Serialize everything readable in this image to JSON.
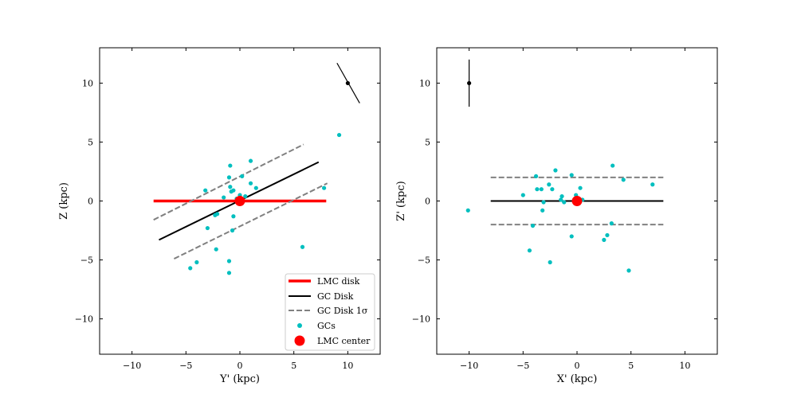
{
  "chart_data": [
    {
      "type": "scatter",
      "xlabel": "Y' (kpc)",
      "ylabel": "Z (kpc)",
      "xlim": [
        -13,
        13
      ],
      "ylim": [
        -13,
        13
      ],
      "xticks": [
        -10,
        -5,
        0,
        5,
        10
      ],
      "yticks": [
        -10,
        -5,
        0,
        5,
        10
      ],
      "xtick_labels": [
        "−10",
        "−5",
        "0",
        "5",
        "10"
      ],
      "ytick_labels": [
        "−10",
        "−5",
        "0",
        "5",
        "10"
      ],
      "legend_position": "lower-right",
      "lines": [
        {
          "name": "LMC disk",
          "style": "solid",
          "color": "#ff0000",
          "width": 3.5,
          "x": [
            -8,
            8
          ],
          "y": [
            0,
            0
          ]
        },
        {
          "name": "GC Disk",
          "style": "solid",
          "color": "#000000",
          "width": 2,
          "x": [
            -7.5,
            7.3
          ],
          "y": [
            -3.3,
            3.3
          ]
        },
        {
          "name": "GC Disk 1σ",
          "style": "dashed",
          "color": "#808080",
          "width": 2,
          "x": [
            -8,
            5.9
          ],
          "y": [
            -1.6,
            4.8
          ]
        },
        {
          "name": "GC Disk 1σ lower",
          "style": "dashed",
          "color": "#808080",
          "width": 2,
          "x": [
            -6.1,
            8.1
          ],
          "y": [
            -4.9,
            1.5
          ]
        }
      ],
      "gcs": {
        "name": "GCs",
        "color": "#00bfbf",
        "points": [
          [
            9.2,
            5.6
          ],
          [
            1.0,
            3.4
          ],
          [
            -0.9,
            3.0
          ],
          [
            -1.0,
            2.0
          ],
          [
            0.2,
            2.1
          ],
          [
            1.0,
            1.5
          ],
          [
            1.5,
            1.1
          ],
          [
            -0.9,
            1.2
          ],
          [
            -3.2,
            0.9
          ],
          [
            -0.6,
            0.9
          ],
          [
            -0.8,
            0.8
          ],
          [
            0.0,
            0.5
          ],
          [
            0.5,
            0.4
          ],
          [
            -0.3,
            0.2
          ],
          [
            -1.5,
            0.3
          ],
          [
            0.1,
            -0.1
          ],
          [
            -2.1,
            -1.1
          ],
          [
            -2.3,
            -1.2
          ],
          [
            -0.6,
            -1.3
          ],
          [
            -3.0,
            -2.3
          ],
          [
            -0.7,
            -2.5
          ],
          [
            -2.2,
            -4.1
          ],
          [
            5.8,
            -3.9
          ],
          [
            -1.0,
            -5.1
          ],
          [
            -4.0,
            -5.2
          ],
          [
            -4.6,
            -5.7
          ],
          [
            -1.0,
            -6.1
          ],
          [
            7.8,
            1.1
          ]
        ]
      },
      "center": {
        "name": "LMC center",
        "color": "#ff0000",
        "x": 0,
        "y": 0
      },
      "errorbar": {
        "x": 10,
        "y": 10,
        "color": "#000000",
        "x_low": 9.0,
        "y_low": 11.7,
        "x_high": 11.1,
        "y_high": 8.3
      },
      "legend": [
        "LMC disk",
        "GC Disk",
        "GC Disk 1σ",
        "GCs",
        "LMC center"
      ]
    },
    {
      "type": "scatter",
      "xlabel": "X' (kpc)",
      "ylabel": "Z' (kpc)",
      "xlim": [
        -13,
        13
      ],
      "ylim": [
        -13,
        13
      ],
      "xticks": [
        -10,
        -5,
        0,
        5,
        10
      ],
      "yticks": [
        -10,
        -5,
        0,
        5,
        10
      ],
      "xtick_labels": [
        "−10",
        "−5",
        "0",
        "5",
        "10"
      ],
      "ytick_labels": [
        "−10",
        "−5",
        "0",
        "5",
        "10"
      ],
      "lines": [
        {
          "name": "GC Disk",
          "style": "solid",
          "color": "#000000",
          "width": 2,
          "x": [
            -8,
            8
          ],
          "y": [
            0,
            0
          ]
        },
        {
          "name": "GC Disk 1σ upper",
          "style": "dashed",
          "color": "#808080",
          "width": 2,
          "x": [
            -8,
            8
          ],
          "y": [
            2,
            2
          ]
        },
        {
          "name": "GC Disk 1σ lower",
          "style": "dashed",
          "color": "#808080",
          "width": 2,
          "x": [
            -8,
            8
          ],
          "y": [
            -2,
            -2
          ]
        }
      ],
      "gcs": {
        "name": "GCs",
        "color": "#00bfbf",
        "points": [
          [
            -10.1,
            -0.8
          ],
          [
            -5.0,
            0.5
          ],
          [
            -4.4,
            -4.2
          ],
          [
            -4.1,
            -2.1
          ],
          [
            -3.8,
            2.1
          ],
          [
            -3.7,
            1.0
          ],
          [
            -3.3,
            1.0
          ],
          [
            -3.1,
            -0.1
          ],
          [
            -3.2,
            -0.8
          ],
          [
            -2.6,
            1.4
          ],
          [
            -2.5,
            -5.2
          ],
          [
            -2.3,
            1.0
          ],
          [
            -2.0,
            2.6
          ],
          [
            -1.4,
            0.4
          ],
          [
            -1.5,
            0.1
          ],
          [
            -1.2,
            -0.1
          ],
          [
            -0.5,
            2.2
          ],
          [
            -0.5,
            -3.0
          ],
          [
            -0.1,
            0.5
          ],
          [
            0.3,
            1.1
          ],
          [
            0.5,
            0.1
          ],
          [
            2.5,
            -3.3
          ],
          [
            2.8,
            -2.9
          ],
          [
            3.2,
            -1.9
          ],
          [
            3.3,
            3.0
          ],
          [
            4.3,
            1.8
          ],
          [
            4.8,
            -5.9
          ],
          [
            7.0,
            1.4
          ]
        ]
      },
      "center": {
        "name": "LMC center",
        "color": "#ff0000",
        "x": 0,
        "y": 0
      },
      "errorbar": {
        "x": -10,
        "y": 10,
        "color": "#000000",
        "x_low": -10,
        "y_low": 8.0,
        "x_high": -10,
        "y_high": 12.0
      }
    }
  ]
}
